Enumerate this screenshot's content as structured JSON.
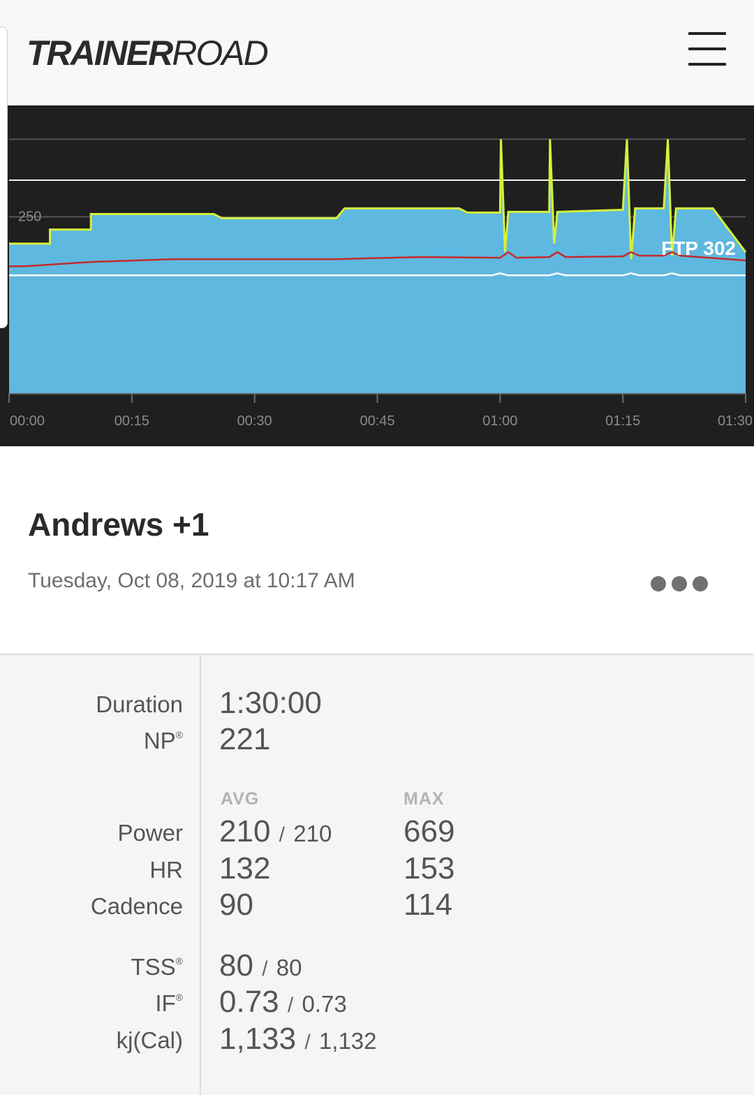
{
  "app": {
    "logo_bold": "TRAINER",
    "logo_regular": "ROAD"
  },
  "chart_data": {
    "type": "area",
    "y_reference_label": "250",
    "ftp_label": "FTP 302",
    "x_ticks": [
      "00:00",
      "00:15",
      "00:30",
      "00:45",
      "01:00",
      "01:15",
      "01:30"
    ],
    "series": [
      {
        "name": "",
        "color": "#5fb8e0",
        "points": [
          [
            0,
            212
          ],
          [
            5,
            212
          ],
          [
            5,
            232
          ],
          [
            10,
            232
          ],
          [
            10,
            254
          ],
          [
            25,
            254
          ],
          [
            26,
            248
          ],
          [
            40,
            248
          ],
          [
            41,
            262
          ],
          [
            55,
            262
          ],
          [
            56,
            256
          ],
          [
            60,
            256
          ],
          [
            60.1,
            360
          ],
          [
            60.6,
            200
          ],
          [
            61,
            257
          ],
          [
            66,
            257
          ],
          [
            66.1,
            360
          ],
          [
            66.6,
            212
          ],
          [
            67,
            257
          ],
          [
            75,
            260
          ],
          [
            75.5,
            360
          ],
          [
            76,
            190
          ],
          [
            76.5,
            262
          ],
          [
            80,
            262
          ],
          [
            80.5,
            360
          ],
          [
            81,
            195
          ],
          [
            81.5,
            262
          ],
          [
            86,
            262
          ],
          [
            90,
            200
          ]
        ]
      },
      {
        "name": "",
        "color": "#c62a2a",
        "points": [
          [
            0,
            180
          ],
          [
            2,
            180
          ],
          [
            10,
            186
          ],
          [
            20,
            190
          ],
          [
            40,
            190
          ],
          [
            50,
            193
          ],
          [
            60,
            192
          ],
          [
            61,
            200
          ],
          [
            62,
            192
          ],
          [
            66,
            193
          ],
          [
            67,
            200
          ],
          [
            68,
            193
          ],
          [
            75,
            194
          ],
          [
            76,
            200
          ],
          [
            77,
            195
          ],
          [
            80,
            195
          ],
          [
            81,
            200
          ],
          [
            82,
            195
          ],
          [
            89,
            189
          ],
          [
            90,
            188
          ]
        ]
      },
      {
        "name": "",
        "color": "#ffffff",
        "points": [
          [
            0,
            167
          ],
          [
            59,
            167
          ],
          [
            60,
            170
          ],
          [
            61,
            167
          ],
          [
            66,
            167
          ],
          [
            67,
            170
          ],
          [
            68,
            167
          ],
          [
            75,
            167
          ],
          [
            76,
            170
          ],
          [
            77,
            167
          ],
          [
            80,
            167
          ],
          [
            81,
            170
          ],
          [
            82,
            167
          ],
          [
            90,
            167
          ]
        ]
      }
    ],
    "reference_lines": [
      250,
      302,
      360
    ],
    "x_range_minutes": [
      0,
      90
    ],
    "y_range_watts": [
      0,
      400
    ],
    "grid": true
  },
  "workout": {
    "title": "Andrews +1",
    "date": "Tuesday, Oct 08, 2019 at 10:17 AM"
  },
  "stats": {
    "duration_label": "Duration",
    "duration_value": "1:30:00",
    "np_label": "NP",
    "np_value": "221",
    "avg_header": "AVG",
    "max_header": "MAX",
    "power_label": "Power",
    "power_avg": "210",
    "power_avg_planned": "210",
    "power_max": "669",
    "hr_label": "HR",
    "hr_avg": "132",
    "hr_max": "153",
    "cadence_label": "Cadence",
    "cadence_avg": "90",
    "cadence_max": "114",
    "tss_label": "TSS",
    "tss_value": "80",
    "tss_planned": "80",
    "if_label": "IF",
    "if_value": "0.73",
    "if_planned": "0.73",
    "kj_label": "kj(Cal)",
    "kj_value": "1,133",
    "kj_planned": "1,132",
    "slash": "/",
    "reg_mark": "®"
  },
  "colors": {
    "chart_bg": "#1f1f1f",
    "power_area": "#5fb8e0",
    "target_line": "#d6f03a",
    "hr_line": "#c62a2a",
    "cadence_line": "#ffffff"
  }
}
